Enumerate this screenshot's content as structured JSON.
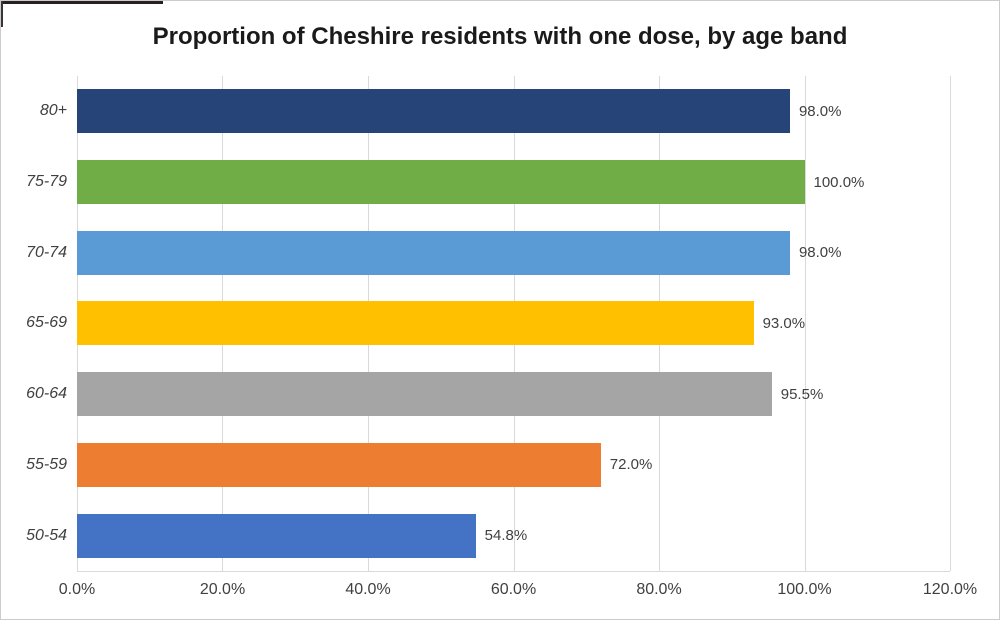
{
  "chart_data": {
    "type": "bar",
    "orientation": "horizontal",
    "title": "Proportion of Cheshire residents with one dose, by age band",
    "categories": [
      "80+",
      "75-79",
      "70-74",
      "65-69",
      "60-64",
      "55-59",
      "50-54"
    ],
    "values": [
      98.0,
      100.0,
      98.0,
      93.0,
      95.5,
      72.0,
      54.8
    ],
    "data_labels": [
      "98.0%",
      "100.0%",
      "98.0%",
      "93.0%",
      "95.5%",
      "72.0%",
      "54.8%"
    ],
    "bar_colors": [
      "#264478",
      "#70AD47",
      "#5B9BD5",
      "#FFC000",
      "#A5A5A5",
      "#ED7D31",
      "#4472C4"
    ],
    "x_ticks": [
      "0.0%",
      "20.0%",
      "40.0%",
      "60.0%",
      "80.0%",
      "100.0%",
      "120.0%"
    ],
    "x_tick_values": [
      0,
      20,
      40,
      60,
      80,
      100,
      120
    ],
    "xlim": [
      0,
      120
    ],
    "xlabel": "",
    "ylabel": "",
    "grid": "vertical",
    "legend": "none",
    "styles": {
      "gridline_color": "#D9D9D9",
      "axis_line_color": "#D9D9D9",
      "axis_text_color": "#404040",
      "title_color": "#1a1a1a",
      "background": "#ffffff"
    }
  }
}
